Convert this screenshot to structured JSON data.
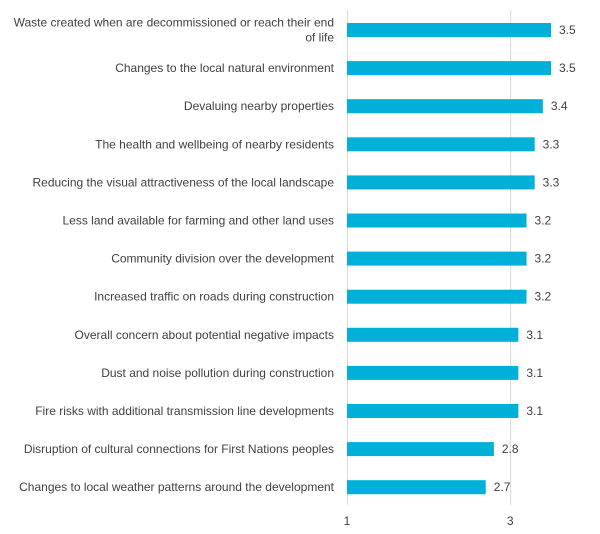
{
  "chart_data": {
    "type": "bar",
    "orientation": "horizontal",
    "categories": [
      [
        "Waste created when are decommissioned or reach their end",
        "of life"
      ],
      [
        "Changes to the local natural environment"
      ],
      [
        "Devaluing nearby properties"
      ],
      [
        "The health and wellbeing of nearby residents"
      ],
      [
        "Reducing the visual attractiveness of the local landscape"
      ],
      [
        "Less land available for farming and other land uses"
      ],
      [
        "Community division over the development"
      ],
      [
        "Increased traffic on roads during construction"
      ],
      [
        "Overall concern about potential negative impacts"
      ],
      [
        "Dust and noise pollution during construction"
      ],
      [
        "Fire risks with additional transmission line developments"
      ],
      [
        "Disruption of cultural connections for First Nations peoples"
      ],
      [
        "Changes to local weather patterns around the development"
      ]
    ],
    "values": [
      3.5,
      3.5,
      3.4,
      3.3,
      3.3,
      3.2,
      3.2,
      3.2,
      3.1,
      3.1,
      3.1,
      2.8,
      2.7
    ],
    "value_labels": [
      "3.5",
      "3.5",
      "3.4",
      "3.3",
      "3.3",
      "3.2",
      "3.2",
      "3.2",
      "3.1",
      "3.1",
      "3.1",
      "2.8",
      "2.7"
    ],
    "xlim": [
      1,
      3.5
    ],
    "x_ticks": [
      1,
      3
    ],
    "x_tick_labels": [
      "1",
      "3"
    ],
    "grid": true,
    "bar_color": "#00B0D8",
    "title": "",
    "xlabel": "",
    "ylabel": ""
  }
}
